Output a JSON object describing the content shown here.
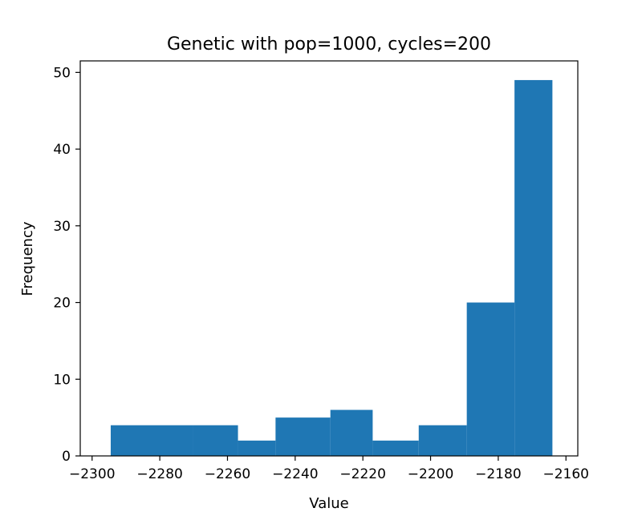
{
  "chart_data": {
    "type": "bar",
    "title": "Genetic with pop=1000, cycles=200",
    "xlabel": "Value",
    "ylabel": "Frequency",
    "xlim": [
      -2303.5,
      -2156.5
    ],
    "ylim": [
      0,
      51.5
    ],
    "xticks": [
      -2300,
      -2280,
      -2260,
      -2240,
      -2220,
      -2200,
      -2180,
      -2160
    ],
    "xtick_labels": [
      "−2300",
      "−2280",
      "−2260",
      "−2240",
      "−2220",
      "−2200",
      "−2180",
      "−2160"
    ],
    "yticks": [
      0,
      10,
      20,
      30,
      40,
      50
    ],
    "ytick_labels": [
      "0",
      "10",
      "20",
      "30",
      "40",
      "50"
    ],
    "bin_edges": [
      -2294.5,
      -2282.4,
      -2270.3,
      -2256.9,
      -2245.8,
      -2229.6,
      -2217.1,
      -2203.5,
      -2189.3,
      -2175.2,
      -2164.0
    ],
    "counts": [
      4,
      4,
      4,
      2,
      5,
      6,
      2,
      4,
      20,
      49
    ],
    "color": "#1f77b4",
    "grid": false,
    "legend": "none"
  }
}
